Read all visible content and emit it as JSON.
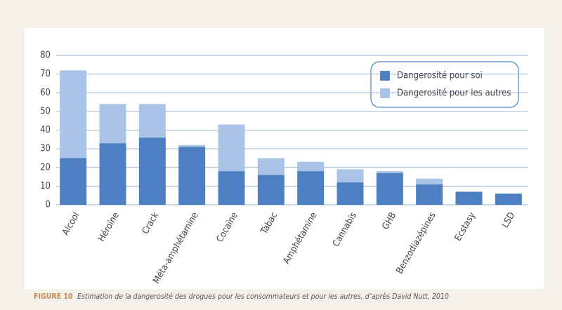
{
  "chart_data": {
    "type": "bar",
    "stacked": true,
    "categories": [
      "Alcool",
      "Héroïne",
      "Crack",
      "Méta-amphétamine",
      "Cocaïne",
      "Tabac",
      "Amphétamine",
      "Cannabis",
      "GHB",
      "Benzodiazépines",
      "Ecstasy",
      "LSD"
    ],
    "series": [
      {
        "name": "Dangerosité pour soi",
        "color": "#4c80c3",
        "values": [
          25,
          33,
          36,
          31,
          18,
          16,
          18,
          12,
          17,
          11,
          7,
          6
        ]
      },
      {
        "name": "Dangerosité pour les autres",
        "color": "#a9c4e6",
        "values": [
          47,
          21,
          18,
          1,
          25,
          9,
          5,
          7,
          1,
          3,
          0,
          0
        ]
      }
    ],
    "ylim": [
      0,
      80
    ],
    "yticks": [
      0,
      10,
      20,
      30,
      40,
      50,
      60,
      70,
      80
    ],
    "grid": true,
    "legend": "top-right"
  },
  "caption": {
    "label": "FIGURE 10",
    "text": "Estimation de la dangerosité des drogues pour les consommateurs et pour les autres, d’après David Nutt, 2010"
  }
}
